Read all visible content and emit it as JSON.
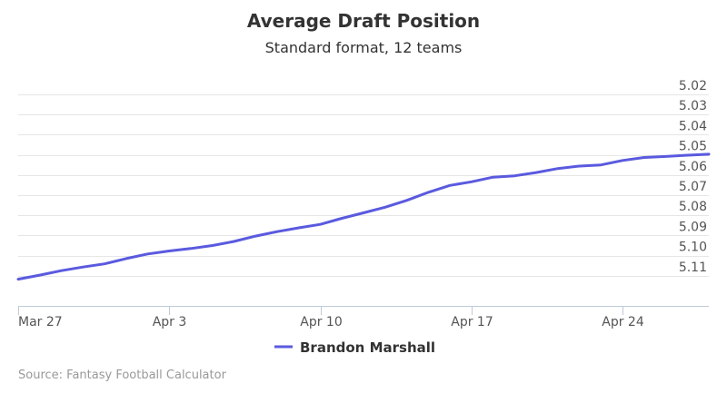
{
  "chart_data": {
    "type": "line",
    "title": "Average Draft Position",
    "subtitle": "Standard format, 12 teams",
    "xlabel": "",
    "ylabel": "",
    "y_reversed": true,
    "ylim": [
      5.11,
      5.02
    ],
    "y_ticks": [
      "5.02",
      "5.03",
      "5.04",
      "5.05",
      "5.06",
      "5.07",
      "5.08",
      "5.09",
      "5.10",
      "5.11"
    ],
    "x_ticks": [
      "Mar 27",
      "Apr 3",
      "Apr 10",
      "Apr 17",
      "Apr 24"
    ],
    "x_tick_days": [
      0,
      7,
      14,
      21,
      28
    ],
    "grid": "horizontal",
    "legend_position": "bottom-center",
    "series": [
      {
        "name": "Brandon Marshall",
        "color": "#5a5adf",
        "x": [
          0,
          1,
          2,
          3,
          4,
          5,
          6,
          7,
          8,
          9,
          10,
          11,
          12,
          13,
          14,
          15,
          16,
          17,
          18,
          19,
          20,
          21,
          22,
          23,
          24,
          25,
          26,
          27,
          28,
          29,
          30,
          31,
          32
        ],
        "values": [
          5.1162,
          5.1142,
          5.112,
          5.1102,
          5.1086,
          5.106,
          5.1037,
          5.1022,
          5.101,
          5.0995,
          5.0975,
          5.0948,
          5.0926,
          5.0907,
          5.089,
          5.086,
          5.0833,
          5.0805,
          5.0771,
          5.0731,
          5.0697,
          5.0679,
          5.0656,
          5.0649,
          5.0633,
          5.0613,
          5.0601,
          5.0595,
          5.0573,
          5.0558,
          5.0553,
          5.0547,
          5.0542
        ]
      }
    ]
  },
  "credits": "Source: Fantasy Football Calculator"
}
